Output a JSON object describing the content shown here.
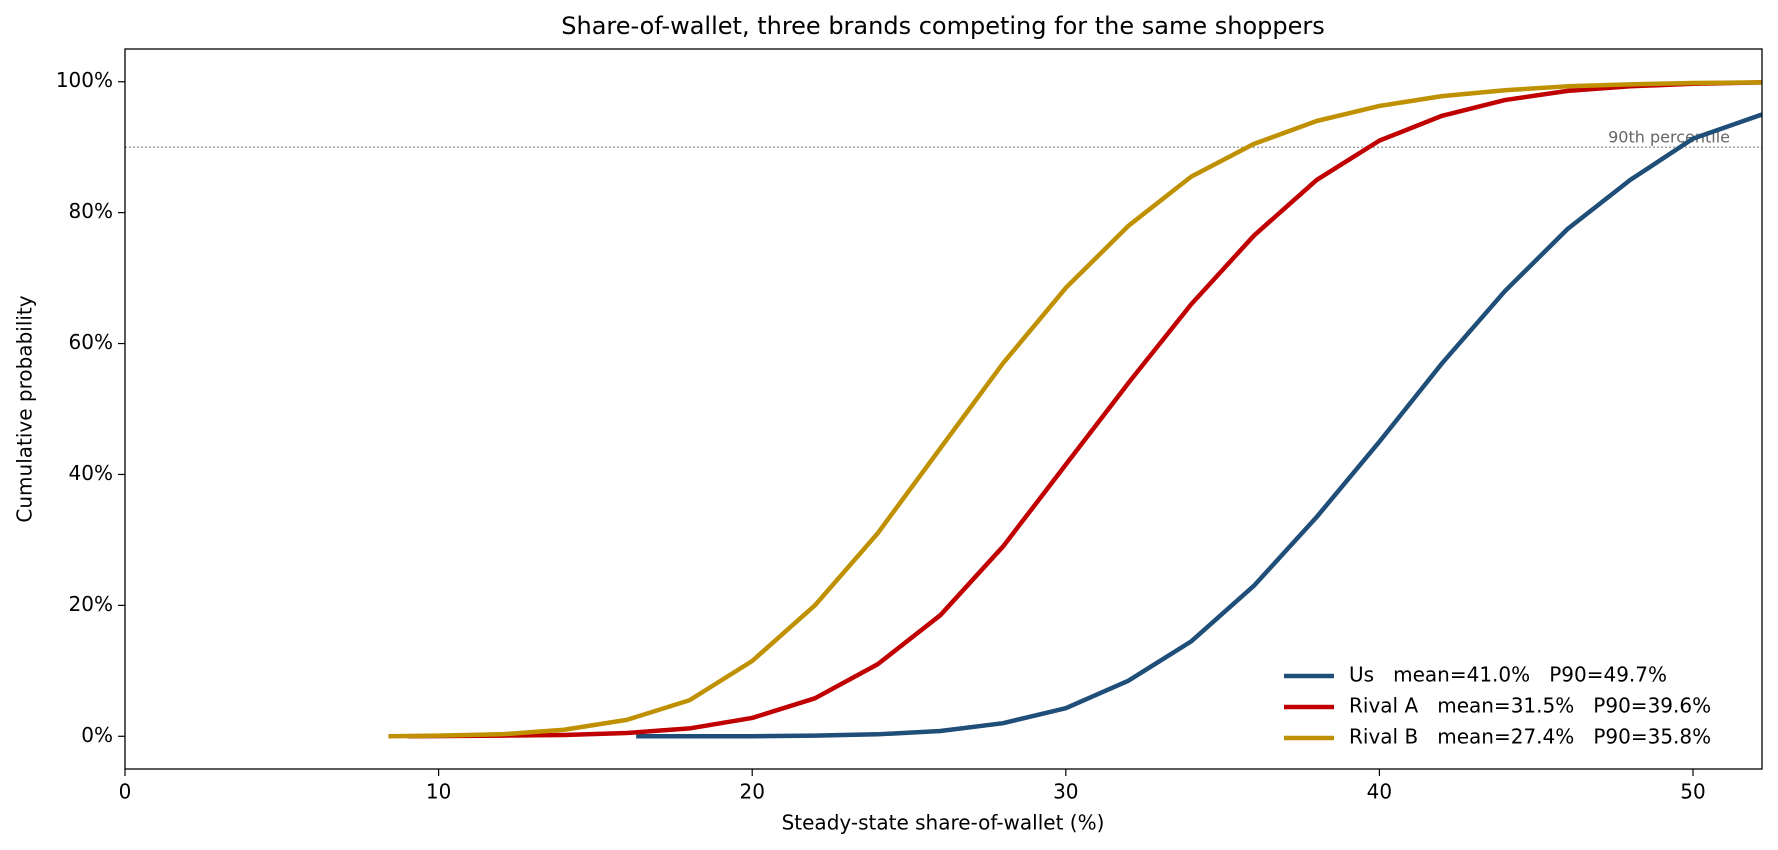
{
  "chart_data": {
    "type": "line",
    "title": "Share-of-wallet, three brands competing for the same shoppers",
    "xlabel": "Steady-state share-of-wallet (%)",
    "ylabel": "Cumulative probability",
    "xlim": [
      0,
      52.2
    ],
    "xticks": [
      0,
      10,
      20,
      30,
      40,
      50
    ],
    "ylim": [
      -5,
      105
    ],
    "yticks": [
      {
        "value": 0,
        "label": "0%"
      },
      {
        "value": 20,
        "label": "20%"
      },
      {
        "value": 40,
        "label": "40%"
      },
      {
        "value": 60,
        "label": "60%"
      },
      {
        "value": 80,
        "label": "80%"
      },
      {
        "value": 100,
        "label": "100%"
      }
    ],
    "grid": false,
    "legend": "lower right",
    "hline": {
      "y": 90,
      "label": "90th percentile"
    },
    "series": [
      {
        "name": "Us   mean=41.0%   P90=49.7%",
        "color": "#1f4e79",
        "x": [
          16.3,
          20,
          22,
          24,
          26,
          28,
          30,
          32,
          34,
          36,
          38,
          40,
          42,
          44,
          46,
          48,
          50,
          52.2
        ],
        "values": [
          0,
          0,
          0.1,
          0.3,
          0.8,
          2,
          4.3,
          8.5,
          14.5,
          23,
          33.5,
          45,
          57,
          68,
          77.5,
          85,
          91.3,
          95
        ]
      },
      {
        "name": "Rival A   mean=31.5%   P90=39.6%",
        "color": "#c00000",
        "x": [
          9,
          12,
          14,
          16,
          18,
          20,
          22,
          24,
          26,
          28,
          30,
          32,
          34,
          36,
          38,
          40,
          42,
          44,
          46,
          48,
          50,
          52.2
        ],
        "values": [
          0,
          0.1,
          0.2,
          0.5,
          1.2,
          2.8,
          5.8,
          11,
          18.5,
          29,
          41.5,
          54,
          66,
          76.5,
          85,
          91,
          94.8,
          97.2,
          98.6,
          99.3,
          99.7,
          99.9
        ]
      },
      {
        "name": "Rival B   mean=27.4%   P90=35.8%",
        "color": "#bf9000",
        "x": [
          8.4,
          10,
          12,
          14,
          16,
          18,
          20,
          22,
          24,
          26,
          28,
          30,
          32,
          34,
          36,
          38,
          40,
          42,
          44,
          46,
          48,
          50,
          52.2
        ],
        "values": [
          0,
          0.1,
          0.3,
          1,
          2.5,
          5.5,
          11.5,
          20,
          31,
          44,
          57,
          68.5,
          78,
          85.5,
          90.5,
          94,
          96.3,
          97.8,
          98.7,
          99.3,
          99.6,
          99.8,
          99.9
        ]
      }
    ]
  }
}
